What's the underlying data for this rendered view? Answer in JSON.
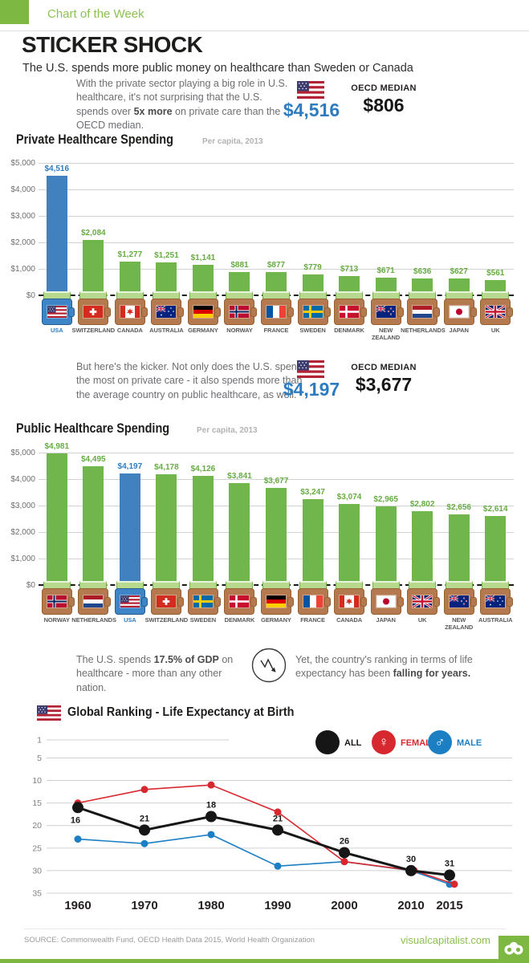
{
  "header": {
    "badge": "Chart of the Week",
    "title": "STICKER SHOCK",
    "subtitle": "The U.S. spends more public money on healthcare than Sweden or Canada"
  },
  "callouts": {
    "private": {
      "pre": "With the private sector playing a big role in U.S. healthcare, it's not surprising that the U.S. spends over ",
      "bold": "5x more",
      "post": " on private care than the OECD median.",
      "us_value": "$4,516",
      "oecd_label": "OECD MEDIAN",
      "oecd_value": "$806"
    },
    "public": {
      "text": "But here's the kicker. Not only does the U.S. spend the most on private care - it also spends more than the average country on public healthcare, as well.",
      "us_value": "$4,197",
      "oecd_label": "OECD MEDIAN",
      "oecd_value": "$3,677"
    },
    "gdp": {
      "pre": "The U.S. spends ",
      "bold": "17.5% of GDP",
      "post": " on healthcare - more than any other nation.",
      "pre2": "Yet, the country's ranking in terms of life expectancy has been ",
      "bold2": "falling for years."
    }
  },
  "chart_data": [
    {
      "type": "bar",
      "title": "Private Healthcare Spending",
      "subtitle": "Per capita, 2013",
      "ylim": [
        0,
        5000
      ],
      "ytick_values": [
        5000,
        4000,
        3000,
        2000,
        1000,
        0
      ],
      "ytick_labels": [
        "$5,000",
        "$4,000",
        "$3,000",
        "$2,000",
        "$1,000",
        "$0"
      ],
      "highlight_index": 0,
      "categories": [
        {
          "label": "USA",
          "flag": "usa"
        },
        {
          "label": "SWITZERLAND",
          "flag": "switzerland"
        },
        {
          "label": "CANADA",
          "flag": "canada"
        },
        {
          "label": "AUSTRALIA",
          "flag": "australia"
        },
        {
          "label": "GERMANY",
          "flag": "germany"
        },
        {
          "label": "NORWAY",
          "flag": "norway"
        },
        {
          "label": "FRANCE",
          "flag": "france"
        },
        {
          "label": "SWEDEN",
          "flag": "sweden"
        },
        {
          "label": "DENMARK",
          "flag": "denmark"
        },
        {
          "label": "NEW ZEALAND",
          "flag": "newzealand"
        },
        {
          "label": "NETHERLANDS",
          "flag": "netherlands"
        },
        {
          "label": "JAPAN",
          "flag": "japan"
        },
        {
          "label": "UK",
          "flag": "uk"
        }
      ],
      "values": [
        4516,
        2084,
        1277,
        1251,
        1141,
        881,
        877,
        779,
        713,
        671,
        636,
        627,
        561
      ],
      "value_labels": [
        "$4,516",
        "$2,084",
        "$1,277",
        "$1,251",
        "$1,141",
        "$881",
        "$877",
        "$779",
        "$713",
        "$671",
        "$636",
        "$627",
        "$561"
      ]
    },
    {
      "type": "bar",
      "title": "Public Healthcare Spending",
      "subtitle": "Per capita, 2013",
      "ylim": [
        0,
        5000
      ],
      "ytick_values": [
        5000,
        4000,
        3000,
        2000,
        1000,
        0
      ],
      "ytick_labels": [
        "$5,000",
        "$4,000",
        "$3,000",
        "$2,000",
        "$1,000",
        "$0"
      ],
      "highlight_index": 2,
      "categories": [
        {
          "label": "NORWAY",
          "flag": "norway"
        },
        {
          "label": "NETHERLANDS",
          "flag": "netherlands"
        },
        {
          "label": "USA",
          "flag": "usa"
        },
        {
          "label": "SWITZERLAND",
          "flag": "switzerland"
        },
        {
          "label": "SWEDEN",
          "flag": "sweden"
        },
        {
          "label": "DENMARK",
          "flag": "denmark"
        },
        {
          "label": "GERMANY",
          "flag": "germany"
        },
        {
          "label": "FRANCE",
          "flag": "france"
        },
        {
          "label": "CANADA",
          "flag": "canada"
        },
        {
          "label": "JAPAN",
          "flag": "japan"
        },
        {
          "label": "UK",
          "flag": "uk"
        },
        {
          "label": "NEW ZEALAND",
          "flag": "newzealand"
        },
        {
          "label": "AUSTRALIA",
          "flag": "australia"
        }
      ],
      "values": [
        4981,
        4495,
        4197,
        4178,
        4126,
        3841,
        3677,
        3247,
        3074,
        2965,
        2802,
        2656,
        2614
      ],
      "value_labels": [
        "$4,981",
        "$4,495",
        "$4,197",
        "$4,178",
        "$4,126",
        "$3,841",
        "$3,677",
        "$3,247",
        "$3,074",
        "$2,965",
        "$2,802",
        "$2,656",
        "$2,614"
      ]
    },
    {
      "type": "line",
      "title": "Global Ranking - Life Expectancy at Birth",
      "x": [
        1960,
        1970,
        1980,
        1990,
        2000,
        2010,
        2015
      ],
      "ytick_values": [
        1,
        5,
        10,
        15,
        20,
        25,
        30,
        35
      ],
      "y_inverted": true,
      "legend_order": [
        "ALL",
        "FEMALE",
        "MALE"
      ],
      "series": [
        {
          "name": "MALE",
          "color_key": "male",
          "values": [
            23,
            24,
            22,
            29,
            28,
            30,
            33
          ]
        },
        {
          "name": "FEMALE",
          "color_key": "female",
          "values": [
            15,
            12,
            11,
            17,
            28,
            30,
            33
          ]
        },
        {
          "name": "ALL",
          "color_key": "all",
          "values": [
            16,
            21,
            18,
            21,
            26,
            30,
            31
          ],
          "point_labels": [
            "16",
            "21",
            "18",
            "21",
            "26",
            "30",
            "31"
          ]
        }
      ]
    }
  ],
  "footer": {
    "source": "SOURCE: Commonwealth Fund, OECD Health Data 2015, World Health Organization",
    "site": "visualcapitalist.com"
  },
  "colors": {
    "accent_green": "#7db843",
    "light_green_text": "#8cc152",
    "bar_green": "#71b64d",
    "usa_blue": "#4181bf",
    "value_blue": "#2e7cc0",
    "female_red": "#d7282f",
    "male_blue": "#1c7fc4",
    "all_black": "#161616",
    "wallet_brown": "#b5794f"
  }
}
